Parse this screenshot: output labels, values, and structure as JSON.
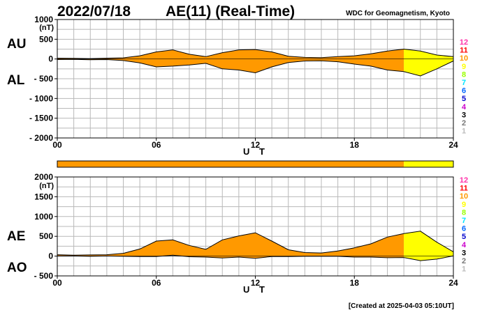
{
  "header": {
    "date": "2022/07/18",
    "title": "AE(11) (Real-Time)",
    "source": "WDC for Geomagnetism, Kyoto"
  },
  "footer": {
    "created": "[Created at 2025-04-03 05:10UT]"
  },
  "colors": {
    "orange": "#ff9900",
    "yellow": "#ffff00",
    "grid": "#b8b8b8"
  },
  "levels": [
    {
      "label": "12",
      "color": "#ff33aa"
    },
    {
      "label": "11",
      "color": "#ff0000"
    },
    {
      "label": "10",
      "color": "#ff9900"
    },
    {
      "label": "9",
      "color": "#ffff00"
    },
    {
      "label": "8",
      "color": "#99ff00"
    },
    {
      "label": "7",
      "color": "#00e5ff"
    },
    {
      "label": "6",
      "color": "#0066ff"
    },
    {
      "label": "5",
      "color": "#0000cc"
    },
    {
      "label": "4",
      "color": "#cc00cc"
    },
    {
      "label": "3",
      "color": "#000000"
    },
    {
      "label": "2",
      "color": "#777777"
    },
    {
      "label": "1",
      "color": "#bbbbbb"
    }
  ],
  "chart_data": [
    {
      "type": "area",
      "series": [
        {
          "name": "AU",
          "x": [
            0,
            1,
            2,
            3,
            4,
            5,
            6,
            7,
            8,
            9,
            10,
            11,
            12,
            13,
            14,
            15,
            16,
            17,
            18,
            19,
            20,
            21,
            22,
            23,
            24
          ],
          "values": [
            20,
            15,
            10,
            20,
            30,
            80,
            180,
            230,
            120,
            60,
            160,
            230,
            240,
            180,
            70,
            40,
            35,
            60,
            80,
            130,
            200,
            250,
            200,
            100,
            60
          ]
        },
        {
          "name": "AL",
          "x": [
            0,
            1,
            2,
            3,
            4,
            5,
            6,
            7,
            8,
            9,
            10,
            11,
            12,
            13,
            14,
            15,
            16,
            17,
            18,
            19,
            20,
            21,
            22,
            23,
            24
          ],
          "values": [
            -15,
            -10,
            -20,
            -15,
            -40,
            -100,
            -200,
            -180,
            -150,
            -110,
            -250,
            -280,
            -350,
            -200,
            -90,
            -50,
            -45,
            -70,
            -130,
            -180,
            -280,
            -320,
            -430,
            -250,
            -50
          ]
        }
      ],
      "band": [
        {
          "from": 0,
          "to": 21,
          "level": "10"
        },
        {
          "from": 21,
          "to": 24,
          "level": "9"
        }
      ],
      "xlabel": "U T",
      "ylabel": "(nT)",
      "xticks": [
        "00",
        "06",
        "12",
        "18",
        "24"
      ],
      "xticks_at": [
        0,
        6,
        12,
        18,
        24
      ],
      "yticks": [
        "1000",
        "500",
        "0",
        "- 500",
        "- 1000",
        "- 1500",
        "- 2000"
      ],
      "yticks_at": [
        1000,
        500,
        0,
        -500,
        -1000,
        -1500,
        -2000
      ],
      "xlim": [
        0,
        24
      ],
      "ylim": [
        -2000,
        1000
      ],
      "grid": true
    },
    {
      "type": "area",
      "series": [
        {
          "name": "AE",
          "x": [
            0,
            1,
            2,
            3,
            4,
            5,
            6,
            7,
            8,
            9,
            10,
            11,
            12,
            13,
            14,
            15,
            16,
            17,
            18,
            19,
            20,
            21,
            22,
            23,
            24
          ],
          "values": [
            35,
            25,
            30,
            35,
            70,
            180,
            380,
            410,
            270,
            170,
            410,
            510,
            590,
            380,
            160,
            90,
            80,
            130,
            210,
            310,
            480,
            570,
            630,
            350,
            110
          ]
        },
        {
          "name": "AO",
          "x": [
            0,
            1,
            2,
            3,
            4,
            5,
            6,
            7,
            8,
            9,
            10,
            11,
            12,
            13,
            14,
            15,
            16,
            17,
            18,
            19,
            20,
            21,
            22,
            23,
            24
          ],
          "values": [
            3,
            3,
            -5,
            3,
            -5,
            -10,
            -10,
            25,
            -15,
            -25,
            -45,
            -25,
            -55,
            -10,
            -10,
            -5,
            -5,
            -5,
            -25,
            -25,
            -40,
            -35,
            -115,
            -75,
            5
          ]
        }
      ],
      "band": [
        {
          "from": 0,
          "to": 21,
          "level": "10"
        },
        {
          "from": 21,
          "to": 24,
          "level": "9"
        }
      ],
      "xlabel": "U T",
      "ylabel": "(nT)",
      "xticks": [
        "00",
        "06",
        "12",
        "18",
        "24"
      ],
      "xticks_at": [
        0,
        6,
        12,
        18,
        24
      ],
      "yticks": [
        "2000",
        "1500",
        "1000",
        "500",
        "0",
        "- 500"
      ],
      "yticks_at": [
        2000,
        1500,
        1000,
        500,
        0,
        -500
      ],
      "xlim": [
        0,
        24
      ],
      "ylim": [
        -500,
        2000
      ],
      "grid": true
    }
  ],
  "activity_bar": [
    {
      "from": 0,
      "to": 21,
      "level": "10"
    },
    {
      "from": 21,
      "to": 24,
      "level": "9"
    }
  ]
}
